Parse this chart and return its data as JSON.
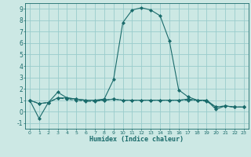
{
  "title": "",
  "xlabel": "Humidex (Indice chaleur)",
  "ylabel": "",
  "bg_color": "#cce8e4",
  "grid_color": "#99cccc",
  "line_color": "#1a6b6b",
  "xlim": [
    -0.5,
    23.5
  ],
  "ylim": [
    -1.5,
    9.5
  ],
  "xticks": [
    0,
    1,
    2,
    3,
    4,
    5,
    6,
    7,
    8,
    9,
    10,
    11,
    12,
    13,
    14,
    15,
    16,
    17,
    18,
    19,
    20,
    21,
    22,
    23
  ],
  "yticks": [
    -1,
    0,
    1,
    2,
    3,
    4,
    5,
    6,
    7,
    8,
    9
  ],
  "series": [
    {
      "x": [
        0,
        1,
        2,
        3,
        4,
        5,
        6,
        7,
        8,
        9,
        10,
        11,
        12,
        13,
        14,
        15,
        16,
        17,
        18,
        19,
        20,
        21,
        22,
        23
      ],
      "y": [
        1.0,
        -0.6,
        0.8,
        1.7,
        1.2,
        1.1,
        1.0,
        1.0,
        1.1,
        2.8,
        7.8,
        8.9,
        9.1,
        8.9,
        8.4,
        6.2,
        1.9,
        1.3,
        1.0,
        1.0,
        0.2,
        0.5,
        0.4,
        0.4
      ],
      "linestyle": "-",
      "marker": "D"
    },
    {
      "x": [
        0,
        1,
        2,
        3,
        4,
        5,
        6,
        7,
        8,
        9,
        10,
        11,
        12,
        13,
        14,
        15,
        16,
        17,
        18,
        19,
        20,
        21,
        22,
        23
      ],
      "y": [
        1.0,
        0.7,
        0.8,
        1.2,
        1.1,
        1.0,
        0.9,
        0.9,
        1.0,
        1.1,
        1.0,
        1.0,
        1.0,
        1.0,
        1.0,
        1.0,
        1.0,
        1.0,
        1.0,
        0.9,
        0.4,
        0.5,
        0.4,
        0.4
      ],
      "linestyle": "--",
      "marker": "D"
    },
    {
      "x": [
        0,
        1,
        2,
        3,
        4,
        5,
        6,
        7,
        8,
        9,
        10,
        11,
        12,
        13,
        14,
        15,
        16,
        17,
        18,
        19,
        20,
        21,
        22,
        23
      ],
      "y": [
        1.0,
        0.7,
        0.8,
        1.2,
        1.2,
        1.1,
        1.0,
        1.0,
        1.0,
        1.1,
        1.0,
        1.0,
        1.0,
        1.0,
        1.0,
        1.0,
        1.0,
        1.1,
        1.0,
        1.0,
        0.4,
        0.5,
        0.4,
        0.4
      ],
      "linestyle": "-",
      "marker": "D"
    }
  ]
}
